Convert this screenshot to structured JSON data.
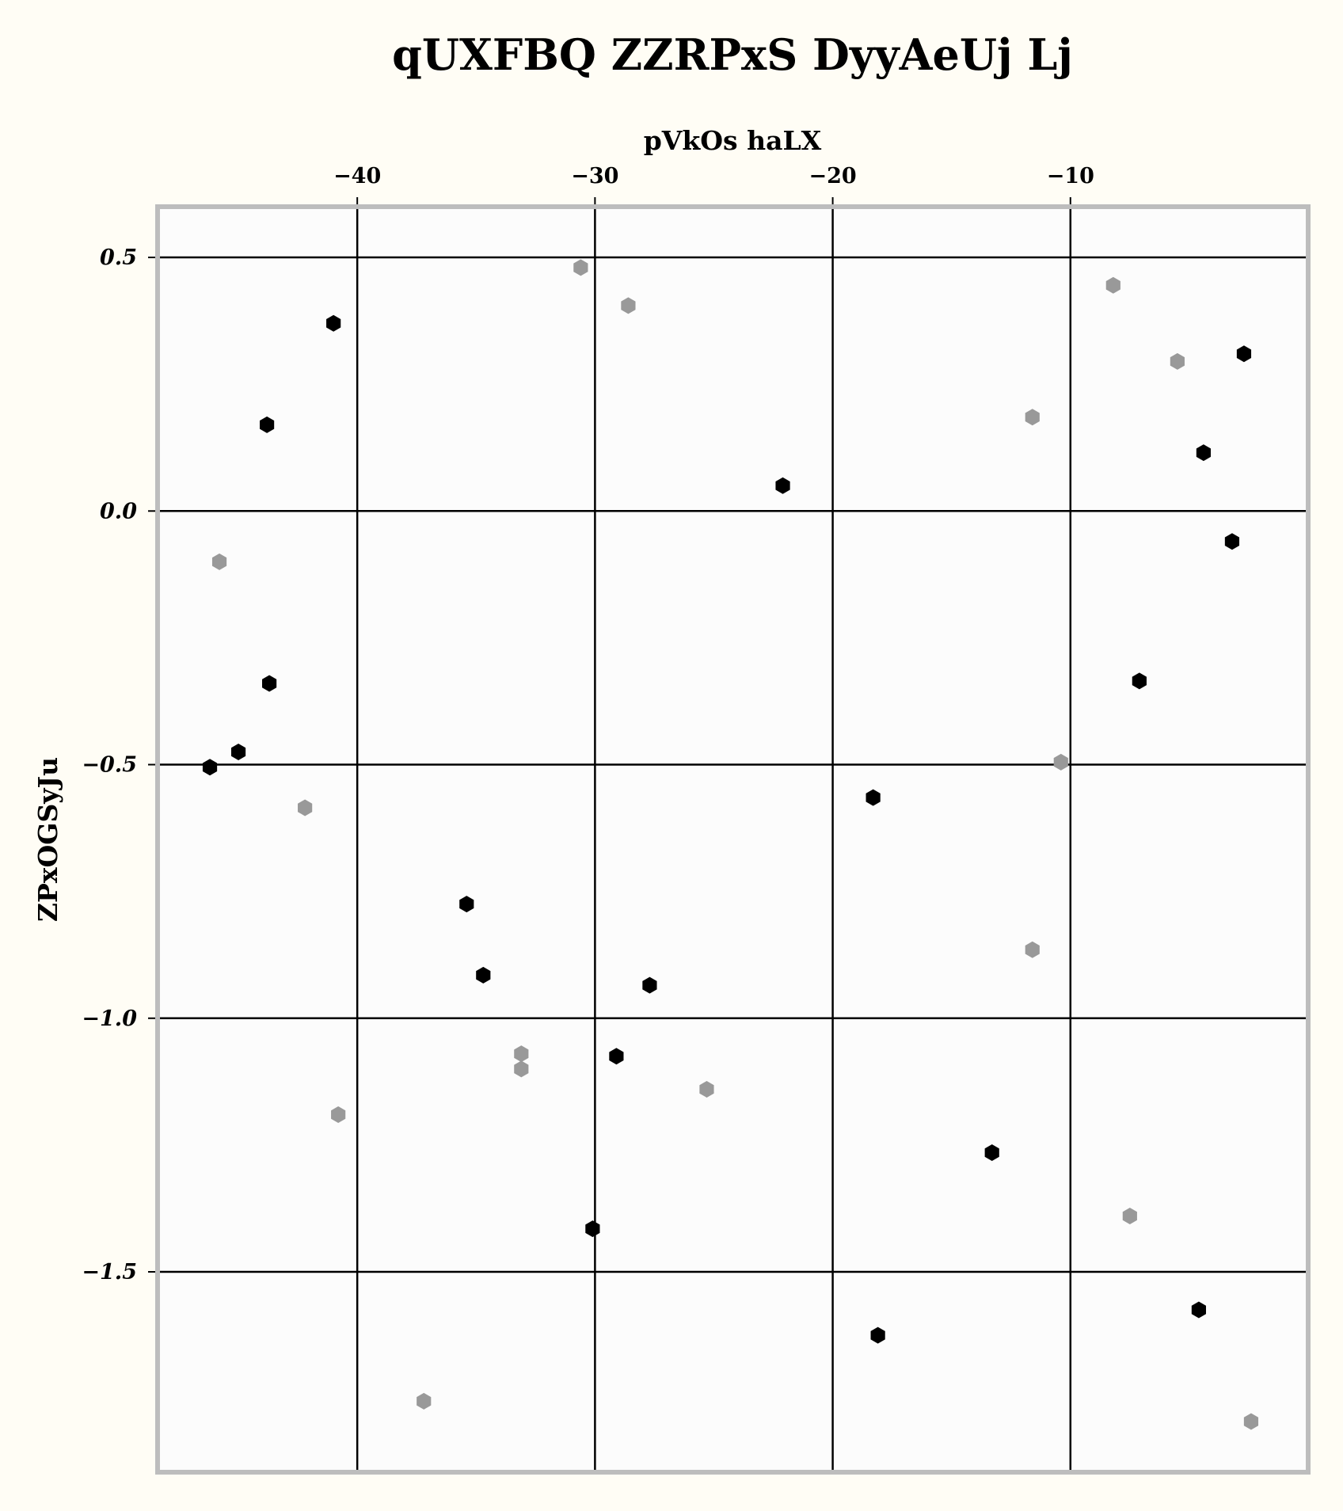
{
  "chart_data": {
    "type": "scatter",
    "title": "qUXFBQ ZZRPxS DyyAeUj Lj",
    "xlabel": "pVkOs haLX",
    "ylabel": "ZPxOGSyJu",
    "x_axis_position": "top",
    "xlim": [
      -48.4,
      0.0
    ],
    "ylim": [
      -1.895,
      0.6
    ],
    "x_ticks": [
      -40,
      -30,
      -20,
      -10
    ],
    "x_tick_labels": [
      "−40",
      "−30",
      "−20",
      "−10"
    ],
    "y_ticks": [
      0.5,
      0.0,
      -0.5,
      -1.0,
      -1.5
    ],
    "y_tick_labels": [
      "0.5",
      "0.0",
      "−0.5",
      "−1.0",
      "−1.5"
    ],
    "grid": true,
    "marker": "hexagon",
    "colors": {
      "background": "#fffdf5",
      "plot_background": "#fcfcfc",
      "frame": "#bdbdbd",
      "grid": "#000000"
    },
    "series": [
      {
        "color": "#000000",
        "points": [
          {
            "x": -41.0,
            "y": 0.37
          },
          {
            "x": -43.8,
            "y": 0.17
          },
          {
            "x": -43.7,
            "y": -0.34
          },
          {
            "x": -45.0,
            "y": -0.475
          },
          {
            "x": -46.2,
            "y": -0.505
          },
          {
            "x": -35.4,
            "y": -0.775
          },
          {
            "x": -34.7,
            "y": -0.915
          },
          {
            "x": -27.7,
            "y": -0.935
          },
          {
            "x": -29.1,
            "y": -1.075
          },
          {
            "x": -30.1,
            "y": -1.415
          },
          {
            "x": -22.1,
            "y": 0.05
          },
          {
            "x": -18.3,
            "y": -0.565
          },
          {
            "x": -18.1,
            "y": -1.625
          },
          {
            "x": -13.3,
            "y": -1.265
          },
          {
            "x": -7.1,
            "y": -0.335
          },
          {
            "x": -4.4,
            "y": 0.115
          },
          {
            "x": -3.2,
            "y": -0.06
          },
          {
            "x": -2.7,
            "y": 0.31
          },
          {
            "x": -4.6,
            "y": -1.575
          }
        ]
      },
      {
        "color": "#999999",
        "points": [
          {
            "x": -30.6,
            "y": 0.48
          },
          {
            "x": -28.6,
            "y": 0.405
          },
          {
            "x": -45.8,
            "y": -0.1
          },
          {
            "x": -42.2,
            "y": -0.585
          },
          {
            "x": -40.8,
            "y": -1.19
          },
          {
            "x": -37.2,
            "y": -1.755
          },
          {
            "x": -33.1,
            "y": -1.07
          },
          {
            "x": -33.1,
            "y": -1.1
          },
          {
            "x": -25.3,
            "y": -1.14
          },
          {
            "x": -11.6,
            "y": 0.185
          },
          {
            "x": -10.4,
            "y": -0.495
          },
          {
            "x": -11.6,
            "y": -0.865
          },
          {
            "x": -8.2,
            "y": 0.445
          },
          {
            "x": -5.5,
            "y": 0.295
          },
          {
            "x": -7.5,
            "y": -1.39
          },
          {
            "x": -2.4,
            "y": -1.795
          }
        ]
      }
    ]
  }
}
